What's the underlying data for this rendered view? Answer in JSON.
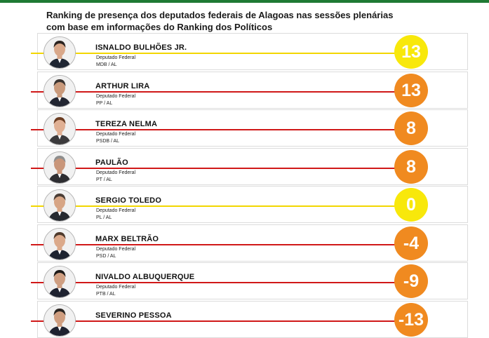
{
  "title": "Ranking de presença dos deputados federais de Alagoas nas sessões plenárias com base em informações do Ranking dos Políticos",
  "colors": {
    "yellow": "#f8e80b",
    "orange": "#f08a20",
    "line_yellow": "#f2d600",
    "line_red": "#d01818"
  },
  "deputies": [
    {
      "name": "ISNALDO BULHÕES JR.",
      "role": "Deputado Federal",
      "party": "MDB / AL",
      "score": "13",
      "color": "yellow",
      "hair": "#2b2420",
      "skin": "#d9a88a",
      "suit": "#1f2633"
    },
    {
      "name": "ARTHUR LIRA",
      "role": "Deputado Federal",
      "party": "PP / AL",
      "score": "13",
      "color": "orange",
      "hair": "#3a3431",
      "skin": "#c99a7c",
      "suit": "#222632"
    },
    {
      "name": "TEREZA NELMA",
      "role": "Deputado Federal",
      "party": "PSDB / AL",
      "score": "8",
      "color": "orange",
      "hair": "#6b3d22",
      "skin": "#e0b094",
      "suit": "#3b3a3c"
    },
    {
      "name": "PAULÃO",
      "role": "Deputado Federal",
      "party": "PT / AL",
      "score": "8",
      "color": "orange",
      "hair": "#8e8e8e",
      "skin": "#c9967a",
      "suit": "#2d2d31"
    },
    {
      "name": "SERGIO TOLEDO",
      "role": "Deputado Federal",
      "party": "PL / AL",
      "score": "0",
      "color": "yellow",
      "hair": "#4a3d35",
      "skin": "#d7a585",
      "suit": "#26292f"
    },
    {
      "name": "MARX BELTRÃO",
      "role": "Deputado Federal",
      "party": "PSD / AL",
      "score": "-4",
      "color": "orange",
      "hair": "#4f3a2c",
      "skin": "#dba98a",
      "suit": "#1d2330"
    },
    {
      "name": "NIVALDO ALBUQUERQUE",
      "role": "Deputado Federal",
      "party": "PTB / AL",
      "score": "-9",
      "color": "orange",
      "hair": "#1d1a18",
      "skin": "#cf9f82",
      "suit": "#1e2230"
    },
    {
      "name": "SEVERINO PESSOA",
      "role": "",
      "party": "",
      "score": "-13",
      "color": "orange",
      "hair": "#2a2522",
      "skin": "#cf9e80",
      "suit": "#1e2230"
    }
  ]
}
